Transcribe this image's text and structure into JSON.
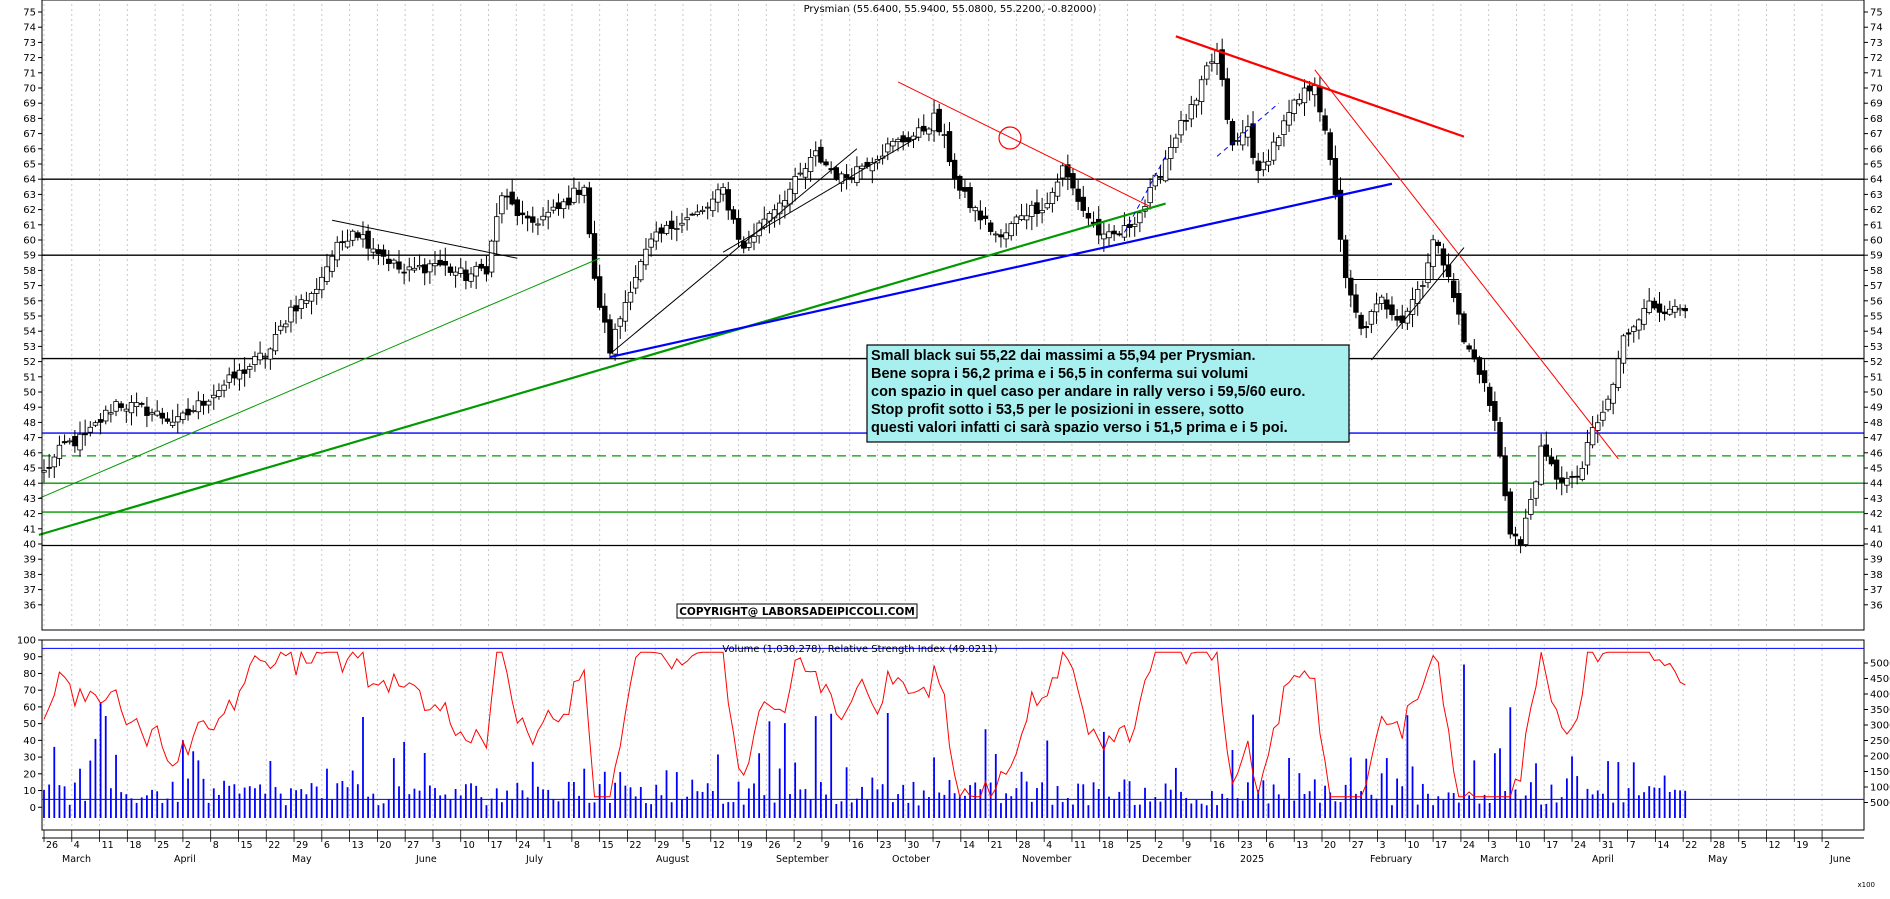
{
  "chart_data": [
    {
      "type": "candlestick",
      "title": "Prysmian (55.6400, 55.9400, 55.0800, 55.2200, -0.82000)",
      "ylim": [
        35,
        75
      ],
      "y_ticks": [
        36,
        37,
        38,
        39,
        40,
        41,
        42,
        43,
        44,
        45,
        46,
        47,
        48,
        49,
        50,
        51,
        52,
        53,
        54,
        55,
        56,
        57,
        58,
        59,
        60,
        61,
        62,
        63,
        64,
        65,
        66,
        67,
        68,
        69,
        70,
        71,
        72,
        73,
        74,
        75
      ],
      "x_tick_labels": [
        "26",
        "4",
        "11",
        "18",
        "25",
        "2",
        "8",
        "15",
        "22",
        "29",
        "6",
        "13",
        "20",
        "27",
        "3",
        "10",
        "17",
        "24",
        "1",
        "8",
        "15",
        "22",
        "29",
        "5",
        "12",
        "19",
        "26",
        "2",
        "9",
        "16",
        "23",
        "30",
        "7",
        "14",
        "21",
        "28",
        "4",
        "11",
        "18",
        "25",
        "2",
        "9",
        "16",
        "23",
        "6",
        "13",
        "20",
        "27",
        "3",
        "10",
        "17",
        "24",
        "3",
        "10",
        "17",
        "24",
        "31",
        "7",
        "14",
        "22",
        "28",
        "5",
        "12",
        "19",
        "2"
      ],
      "month_labels": [
        "March",
        "April",
        "May",
        "June",
        "July",
        "August",
        "September",
        "October",
        "November",
        "December",
        "2025",
        "February",
        "March",
        "April",
        "May",
        "June"
      ],
      "close_anchors": [
        [
          0,
          44.7
        ],
        [
          4,
          46.5
        ],
        [
          8,
          47.0
        ],
        [
          14,
          49.3
        ],
        [
          20,
          48.8
        ],
        [
          26,
          48.0
        ],
        [
          32,
          49.7
        ],
        [
          38,
          51.2
        ],
        [
          44,
          52.8
        ],
        [
          48,
          55.5
        ],
        [
          52,
          56.3
        ],
        [
          56,
          59.0
        ],
        [
          60,
          60.8
        ],
        [
          66,
          59.0
        ],
        [
          70,
          57.8
        ],
        [
          76,
          58.5
        ],
        [
          82,
          57.6
        ],
        [
          86,
          58.2
        ],
        [
          89,
          63.0
        ],
        [
          94,
          61.0
        ],
        [
          100,
          62.0
        ],
        [
          105,
          63.7
        ],
        [
          107,
          57.2
        ],
        [
          110,
          52.8
        ],
        [
          114,
          57.0
        ],
        [
          118,
          59.8
        ],
        [
          123,
          61.2
        ],
        [
          128,
          61.8
        ],
        [
          132,
          63.3
        ],
        [
          136,
          59.3
        ],
        [
          140,
          61.5
        ],
        [
          145,
          63.3
        ],
        [
          150,
          65.6
        ],
        [
          155,
          64.0
        ],
        [
          160,
          65.2
        ],
        [
          165,
          66.3
        ],
        [
          170,
          67.0
        ],
        [
          173,
          68.0
        ],
        [
          175,
          66.5
        ],
        [
          178,
          63.2
        ],
        [
          182,
          61.5
        ],
        [
          186,
          60.0
        ],
        [
          190,
          61.8
        ],
        [
          195,
          62.4
        ],
        [
          198,
          64.7
        ],
        [
          202,
          62.0
        ],
        [
          206,
          60.0
        ],
        [
          210,
          60.6
        ],
        [
          214,
          62.3
        ],
        [
          217,
          64.6
        ],
        [
          220,
          67.0
        ],
        [
          224,
          69.0
        ],
        [
          226,
          71.2
        ],
        [
          228,
          72.3
        ],
        [
          231,
          66.0
        ],
        [
          234,
          67.4
        ],
        [
          236,
          64.2
        ],
        [
          239,
          66.3
        ],
        [
          243,
          68.8
        ],
        [
          247,
          70.5
        ],
        [
          251,
          63.2
        ],
        [
          253,
          57.2
        ],
        [
          256,
          54.0
        ],
        [
          260,
          56.0
        ],
        [
          264,
          54.8
        ],
        [
          268,
          57.4
        ],
        [
          270,
          59.9
        ],
        [
          273,
          58.0
        ],
        [
          276,
          53.3
        ],
        [
          279,
          51.5
        ],
        [
          282,
          48.0
        ],
        [
          285,
          41.0
        ],
        [
          287,
          39.9
        ],
        [
          289,
          43.0
        ],
        [
          291,
          46.0
        ],
        [
          294,
          44.5
        ],
        [
          297,
          44.0
        ],
        [
          299,
          45.0
        ],
        [
          301,
          47.5
        ],
        [
          303,
          48.5
        ],
        [
          305,
          50.5
        ],
        [
          307,
          53.5
        ],
        [
          309,
          54.5
        ],
        [
          311,
          55.8
        ],
        [
          314,
          55.4
        ],
        [
          316,
          55.8
        ],
        [
          317,
          55.2
        ]
      ],
      "volume_label": "Volume (1,030,278), Relative Strength Index (49.0211)",
      "rsi_ylim": [
        -10,
        100
      ],
      "rsi_ticks": [
        0,
        10,
        20,
        30,
        40,
        50,
        60,
        70,
        80,
        90,
        100
      ],
      "volume_ticks": [
        "5000",
        "10000",
        "15000",
        "20000",
        "25000",
        "30000",
        "35000",
        "40000",
        "45000",
        "50000"
      ],
      "volume_scale_max": 50000,
      "horizontal_levels": [
        {
          "value": 64.0,
          "color": "#000000",
          "dashed": false
        },
        {
          "value": 59.0,
          "color": "#000000",
          "dashed": false
        },
        {
          "value": 52.2,
          "color": "#000000",
          "dashed": false
        },
        {
          "value": 47.3,
          "color": "#0000ff",
          "dashed": false
        },
        {
          "value": 45.8,
          "color": "#009900",
          "dashed": true
        },
        {
          "value": 44.0,
          "color": "#009900",
          "dashed": false
        },
        {
          "value": 42.1,
          "color": "#009900",
          "dashed": false
        },
        {
          "value": 39.9,
          "color": "#000000",
          "dashed": false
        }
      ],
      "trend_lines": [
        {
          "from": [
            -1,
            43.0
          ],
          "to": [
            108,
            58.8
          ],
          "color": "#009900",
          "width": 1
        },
        {
          "from": [
            -1,
            40.6
          ],
          "to": [
            218,
            62.4
          ],
          "color": "#009900",
          "width": 2.2
        },
        {
          "from": [
            110,
            52.3
          ],
          "to": [
            262,
            63.7
          ],
          "color": "#0000ff",
          "width": 2.2
        },
        {
          "from": [
            110,
            52.5
          ],
          "to": [
            158,
            66.0
          ],
          "color": "#000000",
          "width": 1
        },
        {
          "from": [
            132,
            59.2
          ],
          "to": [
            170,
            66.8
          ],
          "color": "#000000",
          "width": 1
        },
        {
          "from": [
            56,
            61.3
          ],
          "to": [
            92,
            58.8
          ],
          "color": "#000000",
          "width": 1
        },
        {
          "from": [
            166,
            70.4
          ],
          "to": [
            215,
            62.2
          ],
          "color": "#ff0000",
          "width": 1
        },
        {
          "from": [
            220,
            73.4
          ],
          "to": [
            276,
            66.8
          ],
          "color": "#ff0000",
          "width": 2.2
        },
        {
          "from": [
            247,
            71.2
          ],
          "to": [
            306,
            45.6
          ],
          "color": "#ff0000",
          "width": 1
        },
        {
          "from": [
            258,
            52.1
          ],
          "to": [
            276,
            59.5
          ],
          "color": "#000000",
          "width": 1
        },
        {
          "from": [
            254,
            57.4
          ],
          "to": [
            275,
            57.4
          ],
          "color": "#000000",
          "width": 1
        }
      ],
      "annotation_lines": [
        "Small black sui 55,22 dai massimi a 55,94 per Prysmian.",
        "Bene sopra i 56,2 prima e i 56,5 in conferma sui volumi",
        "con spazio in quel caso per andare in rally verso i 59,5/60 euro.",
        "Stop profit sotto i 53,5 per le posizioni in essere, sotto",
        "questi valori infatti ci sarà spazio verso i 51,5 prima e i 5 poi."
      ],
      "copyright": "COPYRIGHT@ LABORSADEIPICCOLI.COM",
      "colors": {
        "up": "#ffffff",
        "down": "#000000",
        "rsi": "#ff0000",
        "volume": "#0000ff",
        "annotation_bg": "#a8f0f0"
      }
    }
  ],
  "footer_small": "x100"
}
